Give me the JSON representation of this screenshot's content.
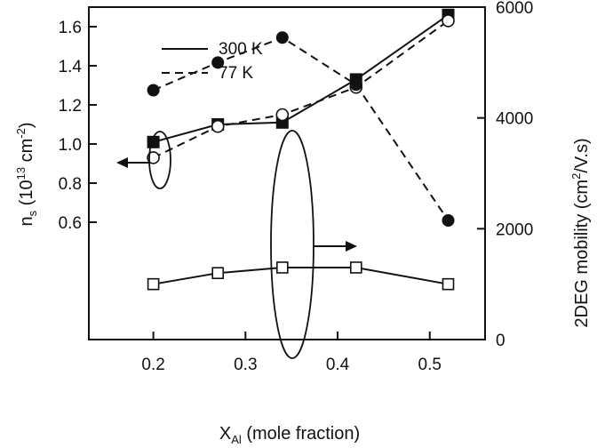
{
  "chart_data": {
    "type": "line",
    "xlabel": {
      "main": "X",
      "sub": "Al",
      "rest": " (mole fraction)"
    },
    "ylabel_left": {
      "main": "n",
      "sub": "s",
      "rest": " (10",
      "sup": "13",
      "rest2": " cm",
      "sup2": "-2",
      "end": ")"
    },
    "ylabel_right": {
      "main": "2DEG mobility (cm",
      "sup": "2",
      "rest": "/V.s)"
    },
    "xlim": [
      0.13,
      0.56
    ],
    "ylim_left": [
      0.0,
      1.7
    ],
    "ylim_right": [
      0,
      6000
    ],
    "x_ticks": [
      "0.2",
      "0.3",
      "0.4",
      "0.5"
    ],
    "y_left_ticks": [
      "0.6",
      "0.8",
      "1.0",
      "1.2",
      "1.4",
      "1.6"
    ],
    "y_right_ticks": [
      "0",
      "2000",
      "4000",
      "6000"
    ],
    "legend": [
      {
        "label": "300 K",
        "style": "solid"
      },
      {
        "label": "77 K",
        "style": "dashed"
      }
    ],
    "series": [
      {
        "name": "300 K",
        "quantity": "n_s",
        "axis": "left",
        "style": "solid",
        "marker": "filled-square",
        "x": [
          0.2,
          0.27,
          0.34,
          0.42,
          0.52
        ],
        "y": [
          1.01,
          1.1,
          1.11,
          1.33,
          1.66
        ]
      },
      {
        "name": "77 K",
        "quantity": "n_s",
        "axis": "left",
        "style": "dashed",
        "marker": "open-circle",
        "x": [
          0.2,
          0.27,
          0.34,
          0.42,
          0.52
        ],
        "y": [
          0.93,
          1.09,
          1.15,
          1.29,
          1.63
        ]
      },
      {
        "name": "77 K",
        "quantity": "mobility",
        "axis": "right",
        "style": "dashed",
        "marker": "filled-circle",
        "x": [
          0.2,
          0.27,
          0.34,
          0.42,
          0.52
        ],
        "y": [
          4500,
          5000,
          5450,
          4600,
          2150
        ]
      },
      {
        "name": "300 K",
        "quantity": "mobility",
        "axis": "right",
        "style": "solid",
        "marker": "open-square",
        "x": [
          0.2,
          0.27,
          0.34,
          0.42,
          0.52
        ],
        "y": [
          1000,
          1200,
          1300,
          1300,
          1000
        ]
      }
    ],
    "annotations": [
      {
        "type": "ellipse-arrow",
        "points_to": "left-axis"
      },
      {
        "type": "ellipse-arrow",
        "points_to": "right-axis"
      }
    ]
  }
}
